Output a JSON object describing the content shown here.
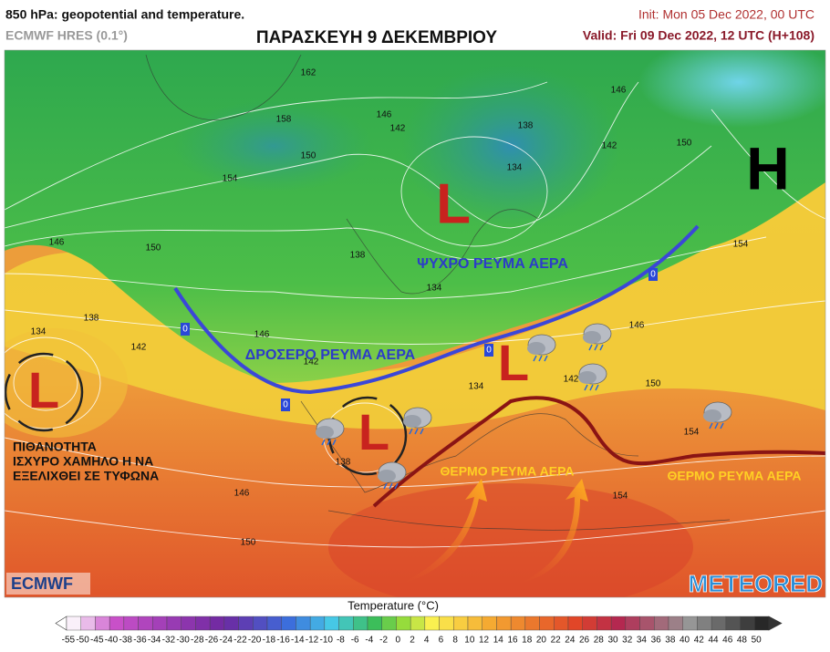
{
  "header": {
    "title": "850 hPa: geopotential and temperature.",
    "model": "ECMWF HRES (0.1°)",
    "headline": "ΠΑΡΑΣΚΕΥΗ 9 ΔΕΚΕΜΒΡΙΟΥ",
    "init": "Init: Mon 05 Dec 2022, 00 UTC",
    "valid": "Valid: Fri 09 Dec 2022, 12 UTC (H+108)"
  },
  "annotations": {
    "cold_stream": "ΨΥΧΡΟ ΡΕΥΜΑ ΑΕΡΑ",
    "cool_stream": "ΔΡΟΣΕΡΟ ΡΕΥΜΑ ΑΕΡΑ",
    "warm_stream_1": "ΘΕΡΜΟ ΡΕΥΜΑ ΑΕΡΑ",
    "warm_stream_2": "ΘΕΡΜΟ ΡΕΥΜΑ ΑΕΡΑ",
    "cyclone_note": [
      "ΠΙΘΑΝΟΤΗΤΑ",
      "ΙΣΧΥΡΟ ΧΑΜΗΛΟ Η ΝΑ",
      "ΕΞΕΛΙΧΘΕΙ ΣΕ ΤΥΦΩΝΑ"
    ]
  },
  "pressure_centers": [
    "L",
    "L",
    "L",
    "L",
    "H"
  ],
  "contour_labels": [
    162,
    158,
    150,
    154,
    146,
    142,
    134,
    138,
    142,
    146,
    150,
    154,
    146,
    150,
    134,
    138,
    142,
    146,
    142,
    138,
    134,
    134,
    146,
    142,
    150,
    154,
    138,
    146,
    150,
    154
  ],
  "isotherm_labels": [
    0,
    0,
    0,
    0
  ],
  "logos": {
    "left": "ECMWF",
    "right": "METEORED"
  },
  "colorbar": {
    "title": "Temperature (°C)",
    "ticks": [
      -55,
      -50,
      -45,
      -40,
      -38,
      -36,
      -34,
      -32,
      -30,
      -28,
      -26,
      -24,
      -22,
      -20,
      -18,
      -16,
      -14,
      -12,
      -10,
      -8,
      -6,
      -4,
      -2,
      0,
      2,
      4,
      6,
      8,
      10,
      12,
      14,
      16,
      18,
      20,
      22,
      24,
      26,
      28,
      30,
      32,
      34,
      36,
      38,
      40,
      42,
      44,
      46,
      48,
      50
    ]
  }
}
